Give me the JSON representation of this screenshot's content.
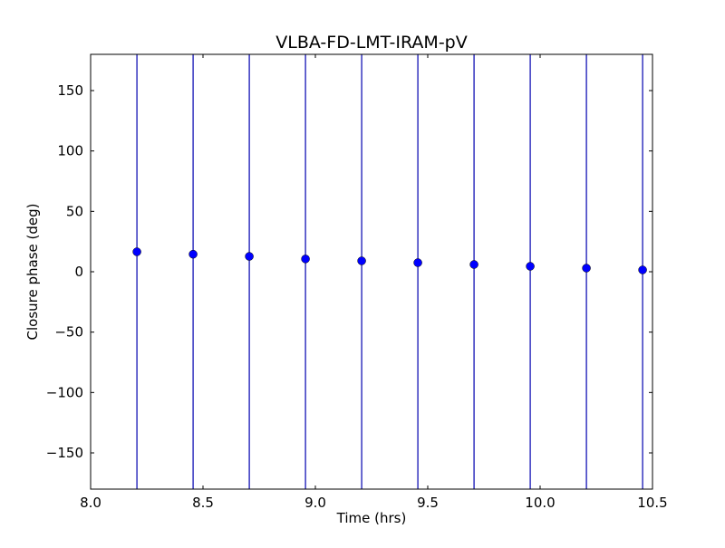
{
  "chart_data": {
    "type": "scatter",
    "title": "VLBA-FD-LMT-IRAM-pV",
    "xlabel": "Time (hrs)",
    "ylabel": "Closure phase (deg)",
    "xlim": [
      8.0,
      10.5
    ],
    "ylim": [
      -180,
      180
    ],
    "xticks": [
      "8.0",
      "8.5",
      "9.0",
      "9.5",
      "10.0",
      "10.5"
    ],
    "xtick_values": [
      8.0,
      8.5,
      9.0,
      9.5,
      10.0,
      10.5
    ],
    "yticks": [
      "−150",
      "−100",
      "−50",
      "0",
      "50",
      "100",
      "150"
    ],
    "ytick_values": [
      -150,
      -100,
      -50,
      0,
      50,
      100,
      150
    ],
    "grid": false,
    "marker_color": "#0000ff",
    "errorbar_color": "#0000b0",
    "series": [
      {
        "x": [
          8.206,
          8.456,
          8.706,
          8.956,
          9.206,
          9.456,
          9.706,
          9.956,
          10.206,
          10.456
        ],
        "y": [
          16.5,
          14.5,
          12.7,
          10.6,
          9.0,
          7.5,
          6.0,
          4.5,
          3.0,
          1.5
        ],
        "yerr": "extends beyond axis range"
      }
    ]
  }
}
